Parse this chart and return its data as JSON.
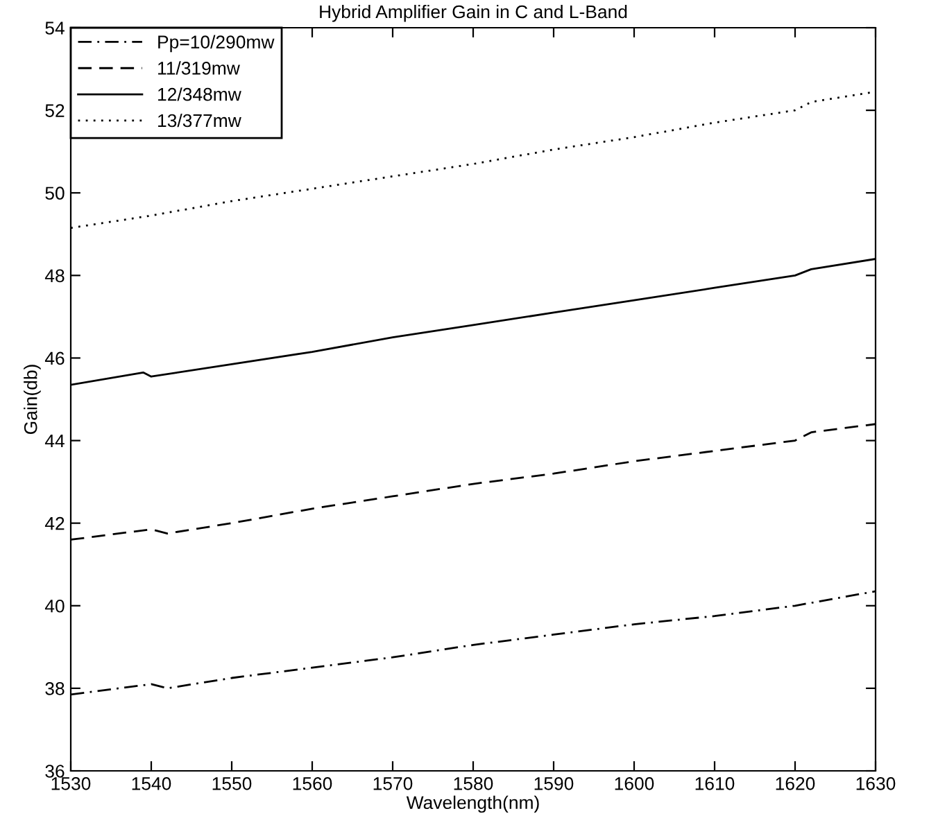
{
  "chart_data": {
    "type": "line",
    "title": "Hybrid Amplifier Gain in C and L-Band",
    "xlabel": "Wavelength(nm)",
    "ylabel": "Gain(db)",
    "xlim": [
      1530,
      1630
    ],
    "xticks": [
      1530,
      1540,
      1550,
      1560,
      1570,
      1580,
      1590,
      1600,
      1610,
      1620,
      1630
    ],
    "ylim": [
      36,
      54
    ],
    "yticks": [
      36,
      38,
      40,
      42,
      44,
      46,
      48,
      50,
      52,
      54
    ],
    "grid": false,
    "legend": "top left",
    "marker": "none",
    "series": [
      {
        "name": "Pp=10/290mw",
        "color": "#000000",
        "line_style": "dashdot",
        "x": [
          1530,
          1540,
          1542,
          1550,
          1560,
          1570,
          1580,
          1590,
          1600,
          1610,
          1620,
          1630
        ],
        "values": [
          37.85,
          38.1,
          38.0,
          38.25,
          38.5,
          38.75,
          39.05,
          39.3,
          39.55,
          39.75,
          40.0,
          40.35
        ]
      },
      {
        "name": "11/319mw",
        "color": "#000000",
        "line_style": "dashed",
        "x": [
          1530,
          1540,
          1542,
          1550,
          1560,
          1570,
          1580,
          1590,
          1600,
          1610,
          1620,
          1622,
          1630
        ],
        "values": [
          41.6,
          41.85,
          41.75,
          42.0,
          42.35,
          42.65,
          42.95,
          43.2,
          43.5,
          43.75,
          44.0,
          44.2,
          44.4
        ]
      },
      {
        "name": "12/348mw",
        "color": "#000000",
        "line_style": "solid",
        "x": [
          1530,
          1539,
          1540,
          1550,
          1560,
          1570,
          1580,
          1590,
          1600,
          1610,
          1620,
          1622,
          1630
        ],
        "values": [
          45.35,
          45.65,
          45.55,
          45.85,
          46.15,
          46.5,
          46.8,
          47.1,
          47.4,
          47.7,
          48.0,
          48.15,
          48.4
        ]
      },
      {
        "name": "13/377mw",
        "color": "#000000",
        "line_style": "dotted",
        "x": [
          1530,
          1540,
          1550,
          1560,
          1570,
          1580,
          1590,
          1600,
          1610,
          1620,
          1622,
          1630
        ],
        "values": [
          49.15,
          49.45,
          49.8,
          50.1,
          50.4,
          50.7,
          51.05,
          51.35,
          51.7,
          52.0,
          52.2,
          52.45
        ]
      }
    ]
  }
}
